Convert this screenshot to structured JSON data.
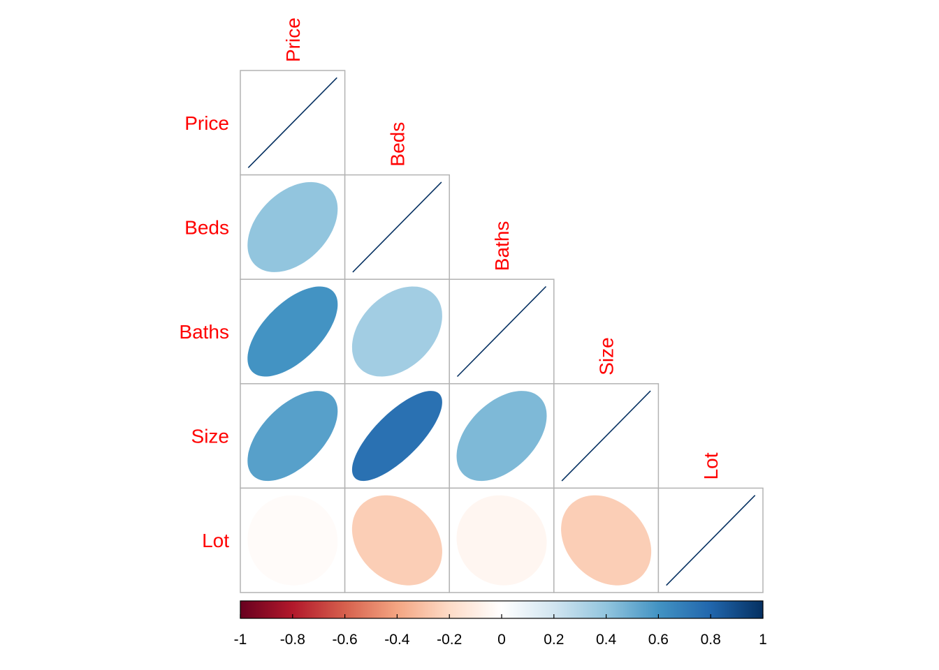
{
  "chart_data": {
    "type": "heatmap",
    "subtype": "correlation-ellipse-lower",
    "variables": [
      "Price",
      "Beds",
      "Baths",
      "Size",
      "Lot"
    ],
    "matrix": [
      [
        1.0,
        0.4,
        0.6,
        0.55,
        -0.02
      ],
      [
        0.4,
        1.0,
        0.35,
        0.75,
        -0.25
      ],
      [
        0.6,
        0.35,
        1.0,
        0.45,
        -0.05
      ],
      [
        0.55,
        0.75,
        0.45,
        1.0,
        -0.25
      ],
      [
        -0.02,
        -0.25,
        -0.05,
        -0.25,
        1.0
      ]
    ],
    "colorbar": {
      "range": [
        -1,
        1
      ],
      "tick_labels": [
        "-1",
        "-0.8",
        "-0.6",
        "-0.4",
        "-0.2",
        "0",
        "0.2",
        "0.4",
        "0.6",
        "0.8",
        "1"
      ],
      "palette": [
        "#67001F",
        "#B2182B",
        "#D6604D",
        "#F4A582",
        "#FDDBC7",
        "#FFFFFF",
        "#D1E5F0",
        "#92C5DE",
        "#4393C3",
        "#2166AC",
        "#053061"
      ]
    },
    "label_color": "#FF0000",
    "diagonal_color": "#053061"
  }
}
